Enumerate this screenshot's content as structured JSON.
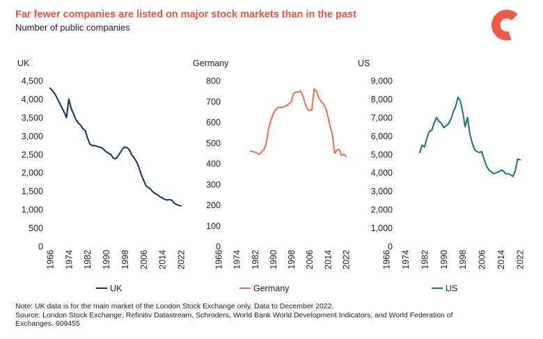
{
  "header": {
    "title": "Far fewer companies are listed on major stock markets than in the past",
    "subtitle": "Number of public companies"
  },
  "footer": {
    "note": "Note: UK data is for the main market of the London Stock Exchange only. Data to December 2022.",
    "source": "Source: London Stock Exchange, Refinitiv Datastream, Schroders, World Bank World Development Indicators, and World Federation of Exchanges. 609455"
  },
  "colors": {
    "title": "#e8533f",
    "uk": "#0e2f5a",
    "germany": "#ec6a55",
    "us": "#1d6e73",
    "logo": "#ec5b4a"
  },
  "chart_data": [
    {
      "type": "line",
      "title": "UK",
      "series_name": "UK",
      "color": "#0e2f5a",
      "xlim": [
        1966,
        2022
      ],
      "x_ticks": [
        1966,
        1974,
        1982,
        1990,
        1998,
        2006,
        2014,
        2022
      ],
      "ylim": [
        0,
        4500
      ],
      "y_ticks": [
        0,
        500,
        1000,
        1500,
        2000,
        2500,
        3000,
        3500,
        4000,
        4500
      ],
      "y_tick_labels": [
        "0",
        "500",
        "1,000",
        "1,500",
        "2,000",
        "2,500",
        "3,000",
        "3,500",
        "4,000",
        "4,500"
      ],
      "x": [
        1966,
        1968,
        1970,
        1972,
        1973,
        1974,
        1975,
        1976,
        1977,
        1978,
        1979,
        1980,
        1981,
        1982,
        1983,
        1984,
        1985,
        1986,
        1987,
        1988,
        1989,
        1990,
        1991,
        1992,
        1993,
        1994,
        1995,
        1996,
        1997,
        1998,
        1999,
        2000,
        2001,
        2002,
        2003,
        2004,
        2005,
        2006,
        2007,
        2008,
        2009,
        2010,
        2011,
        2012,
        2013,
        2014,
        2015,
        2016,
        2017,
        2018,
        2019,
        2020,
        2021,
        2022
      ],
      "values": [
        4300,
        4150,
        3900,
        3650,
        3500,
        4000,
        3750,
        3600,
        3450,
        3350,
        3300,
        3200,
        3150,
        2950,
        2780,
        2740,
        2740,
        2720,
        2700,
        2680,
        2630,
        2570,
        2530,
        2500,
        2400,
        2380,
        2450,
        2550,
        2650,
        2700,
        2680,
        2620,
        2480,
        2400,
        2300,
        2150,
        1950,
        1800,
        1650,
        1600,
        1550,
        1480,
        1430,
        1400,
        1350,
        1320,
        1280,
        1260,
        1270,
        1260,
        1180,
        1140,
        1120,
        1100
      ]
    },
    {
      "type": "line",
      "title": "Germany",
      "series_name": "Germany",
      "color": "#ec6a55",
      "xlim": [
        1966,
        2022
      ],
      "x_ticks": [
        1966,
        1974,
        1982,
        1990,
        1998,
        2006,
        2014,
        2022
      ],
      "ylim": [
        0,
        800
      ],
      "y_ticks": [
        0,
        100,
        200,
        300,
        400,
        500,
        600,
        700,
        800
      ],
      "y_tick_labels": [
        "0",
        "100",
        "200",
        "300",
        "400",
        "500",
        "600",
        "700",
        "800"
      ],
      "x": [
        1980,
        1982,
        1984,
        1986,
        1987,
        1988,
        1989,
        1990,
        1991,
        1992,
        1993,
        1994,
        1995,
        1996,
        1997,
        1998,
        1999,
        2000,
        2001,
        2002,
        2003,
        2004,
        2005,
        2006,
        2007,
        2008,
        2009,
        2010,
        2011,
        2012,
        2013,
        2014,
        2015,
        2016,
        2017,
        2018,
        2019,
        2020,
        2021,
        2022
      ],
      "values": [
        460,
        455,
        445,
        470,
        500,
        570,
        610,
        640,
        660,
        670,
        672,
        672,
        675,
        680,
        690,
        700,
        740,
        745,
        745,
        750,
        730,
        690,
        665,
        655,
        660,
        760,
        750,
        720,
        700,
        690,
        670,
        630,
        580,
        540,
        450,
        465,
        470,
        440,
        445,
        435
      ]
    },
    {
      "type": "line",
      "title": "US",
      "series_name": "US",
      "color": "#1d6e73",
      "xlim": [
        1966,
        2022
      ],
      "x_ticks": [
        1966,
        1974,
        1982,
        1990,
        1998,
        2006,
        2014,
        2022
      ],
      "ylim": [
        0,
        9000
      ],
      "y_ticks": [
        0,
        1000,
        2000,
        3000,
        4000,
        5000,
        6000,
        7000,
        8000,
        9000
      ],
      "y_tick_labels": [
        "0",
        "1,000",
        "2,000",
        "3,000",
        "4,000",
        "5,000",
        "6,000",
        "7,000",
        "8,000",
        "9,000"
      ],
      "x": [
        1980,
        1981,
        1982,
        1983,
        1984,
        1985,
        1986,
        1987,
        1988,
        1989,
        1990,
        1991,
        1992,
        1993,
        1994,
        1995,
        1996,
        1997,
        1998,
        1999,
        2000,
        2001,
        2002,
        2003,
        2004,
        2005,
        2006,
        2007,
        2008,
        2009,
        2010,
        2011,
        2012,
        2013,
        2014,
        2015,
        2016,
        2017,
        2018,
        2019,
        2020,
        2021,
        2022
      ],
      "values": [
        5100,
        5500,
        5400,
        5900,
        6250,
        6300,
        6700,
        7000,
        6800,
        6700,
        6450,
        6550,
        6650,
        6900,
        7300,
        7600,
        8100,
        7900,
        7300,
        6500,
        7000,
        6100,
        5600,
        5250,
        5150,
        5100,
        5150,
        4700,
        4350,
        4150,
        4050,
        3950,
        4000,
        4050,
        4150,
        4100,
        3950,
        3950,
        3900,
        3800,
        4100,
        4750,
        4700
      ]
    }
  ]
}
